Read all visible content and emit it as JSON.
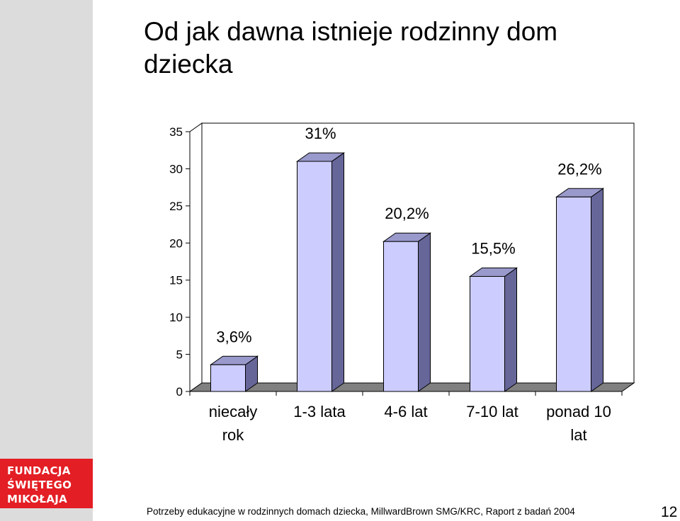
{
  "slide": {
    "title": "Od jak dawna istnieje rodzinny dom dziecka",
    "footer": "Potrzeby edukacyjne w rodzinnych domach dziecka, MillwardBrown SMG/KRC, Raport z badań 2004",
    "page_number": "12",
    "logo_lines": [
      "FUNDACJA",
      "ŚWIĘTEGO",
      "MIKOŁAJA"
    ]
  },
  "colors": {
    "bar_front": "#ccccff",
    "bar_side": "#666699",
    "bar_top": "#9999cc",
    "floor": "#808080",
    "logo_bg": "#e31e24",
    "sidebar_bg": "#dcdcdc"
  },
  "chart_data": {
    "type": "bar",
    "title": "",
    "xlabel": "",
    "ylabel": "",
    "ylim": [
      0,
      35
    ],
    "yticks": [
      "0",
      "5",
      "10",
      "15",
      "20",
      "25",
      "30",
      "35"
    ],
    "categories": [
      [
        "niecały",
        "rok"
      ],
      [
        "1-3 lata"
      ],
      [
        "4-6 lat"
      ],
      [
        "7-10 lat"
      ],
      [
        "ponad 10",
        "lat"
      ]
    ],
    "values": [
      3.6,
      31,
      20.2,
      15.5,
      26.2
    ],
    "data_labels": [
      "3,6%",
      "31%",
      "20,2%",
      "15,5%",
      "26,2%"
    ],
    "grid": false,
    "legend": "none"
  }
}
